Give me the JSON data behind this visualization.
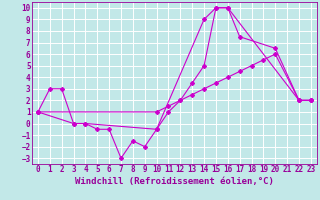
{
  "xlabel": "Windchill (Refroidissement éolien,°C)",
  "xlim": [
    -0.5,
    23.5
  ],
  "ylim": [
    -3.5,
    10.5
  ],
  "xticks": [
    0,
    1,
    2,
    3,
    4,
    5,
    6,
    7,
    8,
    9,
    10,
    11,
    12,
    13,
    14,
    15,
    16,
    17,
    18,
    19,
    20,
    21,
    22,
    23
  ],
  "yticks": [
    -3,
    -2,
    -1,
    0,
    1,
    2,
    3,
    4,
    5,
    6,
    7,
    8,
    9,
    10
  ],
  "bg_color": "#c2e8e8",
  "grid_color": "#ffffff",
  "line_color": "#cc00cc",
  "s1_x": [
    0,
    1,
    2,
    3,
    4,
    5,
    6,
    7,
    8,
    9,
    10,
    14,
    15,
    16,
    22,
    23
  ],
  "s1_y": [
    1,
    3,
    3,
    0,
    0,
    -0.5,
    -0.5,
    -3,
    -1.5,
    -2,
    -0.5,
    9,
    10,
    10,
    2,
    2
  ],
  "s2_x": [
    0,
    3,
    4,
    10,
    11,
    12,
    13,
    14,
    15,
    16,
    17,
    20,
    22,
    23
  ],
  "s2_y": [
    1,
    0,
    0,
    -0.5,
    1,
    2,
    3.5,
    5,
    10,
    10,
    7.5,
    6.5,
    2,
    2
  ],
  "s3_x": [
    0,
    10,
    11,
    12,
    13,
    14,
    15,
    16,
    17,
    18,
    19,
    20,
    22,
    23
  ],
  "s3_y": [
    1,
    1,
    1.5,
    2,
    2.5,
    3,
    3.5,
    4,
    4.5,
    5,
    5.5,
    6,
    2,
    2
  ],
  "font_color": "#990099",
  "xlabel_fontsize": 6.5,
  "tick_fontsize": 5.5
}
